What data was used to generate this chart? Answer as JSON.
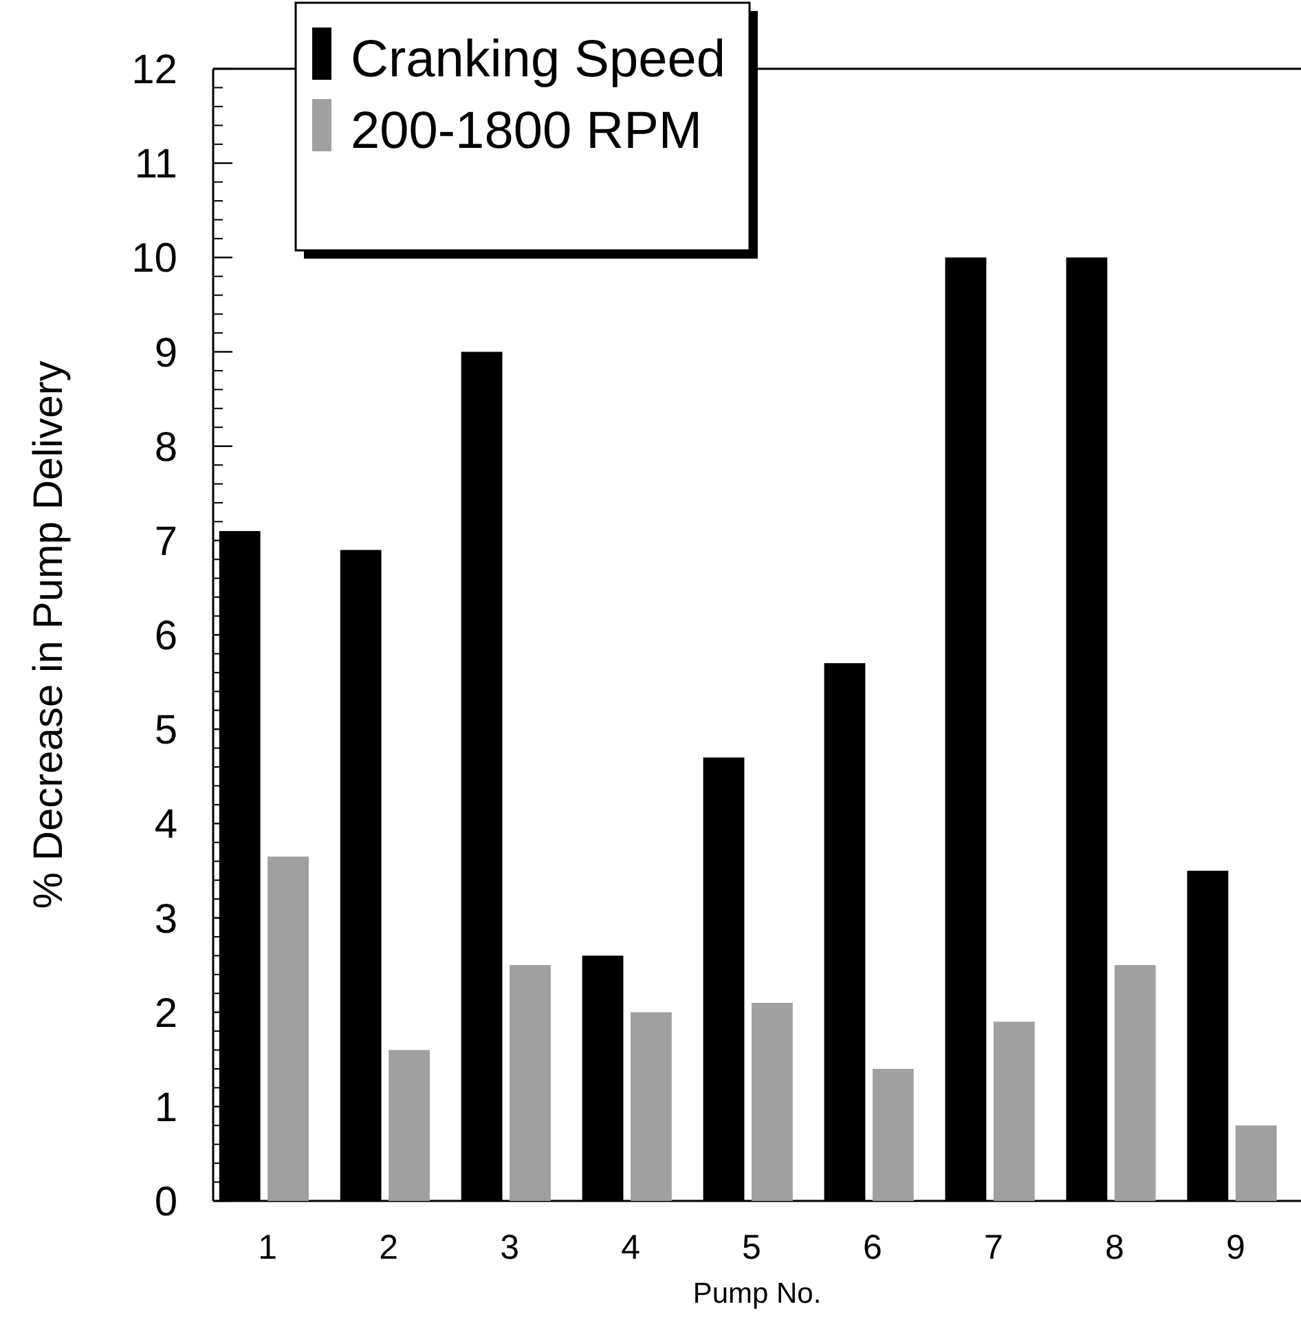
{
  "chart_data": {
    "type": "bar",
    "xlabel": "Pump No.",
    "ylabel": "% Decrease in Pump Delivery",
    "categories": [
      "1",
      "2",
      "3",
      "4",
      "5",
      "6",
      "7",
      "8",
      "9"
    ],
    "series": [
      {
        "name": "Cranking Speed",
        "color": "#000000",
        "values": [
          7.1,
          6.9,
          9.0,
          2.6,
          4.7,
          5.7,
          10.0,
          10.0,
          3.5
        ]
      },
      {
        "name": "200-1800 RPM",
        "color": "#a0a0a0",
        "values": [
          3.65,
          1.6,
          2.5,
          2.0,
          2.1,
          1.4,
          1.9,
          2.5,
          0.8
        ]
      }
    ],
    "ylim": [
      0,
      12
    ],
    "yticks": [
      0,
      1,
      2,
      3,
      4,
      5,
      6,
      7,
      8,
      9,
      10,
      11,
      12
    ],
    "legend": "top left",
    "grid": false
  }
}
